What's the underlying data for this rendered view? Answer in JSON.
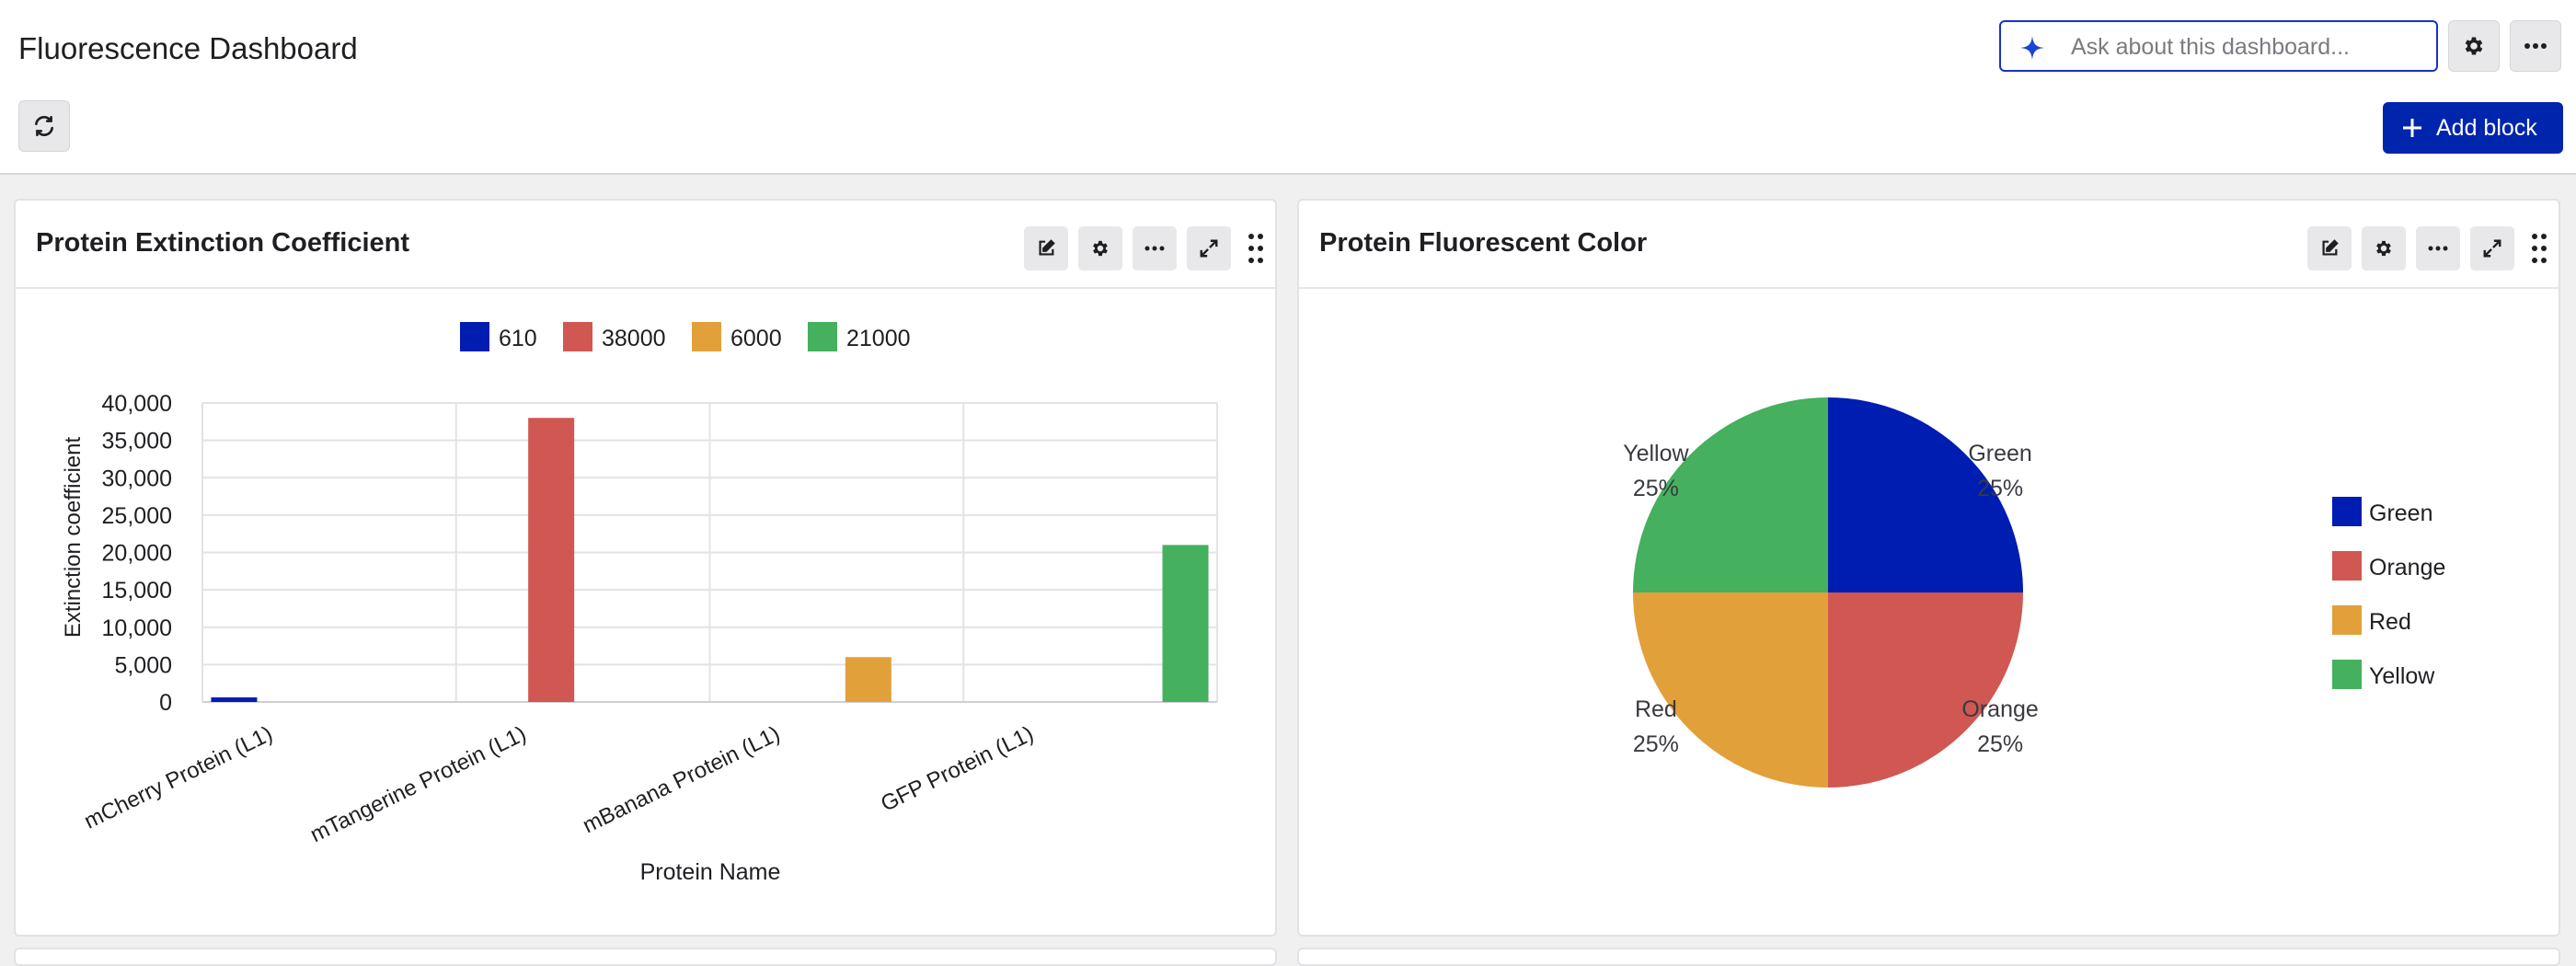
{
  "header": {
    "title": "Fluorescence Dashboard",
    "ask_placeholder": "Ask about this dashboard...",
    "add_block_label": "Add block",
    "sparkle_icon": "sparkle-icon",
    "settings_icon": "gear-icon",
    "more_icon": "more-icon",
    "refresh_icon": "refresh-icon",
    "accent_color": "#0025ad"
  },
  "panels": [
    {
      "title": "Protein Extinction Coefficient",
      "icons": [
        "edit-icon",
        "gear-icon",
        "more-icon",
        "expand-icon",
        "drag-handle-icon"
      ]
    },
    {
      "title": "Protein Fluorescent Color",
      "icons": [
        "edit-icon",
        "gear-icon",
        "more-icon",
        "expand-icon",
        "drag-handle-icon"
      ]
    }
  ],
  "chart_data": [
    {
      "type": "bar",
      "title": "Protein Extinction Coefficient",
      "xlabel": "Protein Name",
      "ylabel": "Extinction coefficient",
      "ylim": [
        0,
        40000
      ],
      "yticks": [
        "0",
        "5,000",
        "10,000",
        "15,000",
        "20,000",
        "25,000",
        "30,000",
        "35,000",
        "40,000"
      ],
      "categories": [
        "mCherry Protein (L1)",
        "mTangerine Protein (L1)",
        "mBanana Protein (L1)",
        "GFP Protein (L1)"
      ],
      "series": [
        {
          "name": "610",
          "color": "#001db2",
          "values": [
            610,
            0,
            0,
            0
          ]
        },
        {
          "name": "38000",
          "color": "#d05752",
          "values": [
            0,
            38000,
            0,
            0
          ]
        },
        {
          "name": "6000",
          "color": "#e2a03a",
          "values": [
            0,
            0,
            6000,
            0
          ]
        },
        {
          "name": "21000",
          "color": "#45b05e",
          "values": [
            0,
            0,
            0,
            21000
          ]
        }
      ],
      "legend_position": "top",
      "grid": true
    },
    {
      "type": "pie",
      "title": "Protein Fluorescent Color",
      "slices": [
        {
          "label": "Green",
          "value": 25,
          "pct": "25%",
          "color": "#001db2"
        },
        {
          "label": "Orange",
          "value": 25,
          "pct": "25%",
          "color": "#d05752"
        },
        {
          "label": "Red",
          "value": 25,
          "pct": "25%",
          "color": "#e2a03a"
        },
        {
          "label": "Yellow",
          "value": 25,
          "pct": "25%",
          "color": "#45b05e"
        }
      ],
      "legend_position": "right"
    }
  ]
}
